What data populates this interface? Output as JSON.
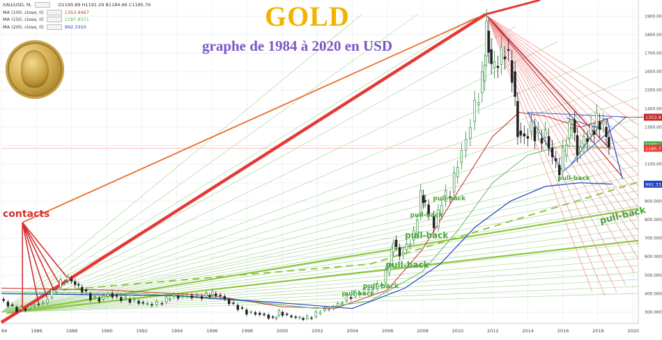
{
  "header": {
    "symbol": "XAU/USD, M,",
    "ohlc": "O1190.89  H1191.29  B1184.66  C1185.76",
    "ma": [
      {
        "label": "MA (100, close, 0)",
        "value": "1353.9467",
        "color": "#c0392b"
      },
      {
        "label": "MA (150, close, 0)",
        "value": "1187.8371",
        "color": "#4caf50"
      },
      {
        "label": "MA (200, close, 0)",
        "value": "992.3310",
        "color": "#1f3fbf"
      }
    ]
  },
  "title": "GOLD",
  "subtitle": "graphe de 1984 à 2020 en USD",
  "colors": {
    "title": "#f0b400",
    "subtitle": "#7b55c6",
    "bull": "#2e8b3e",
    "bear": "#222222",
    "fan_red": "#e53935",
    "fan_green": "#7cc242",
    "annotation_red": "#d32f2f",
    "annotation_green": "#4caf50"
  },
  "chart_data": {
    "type": "line",
    "instrument": "XAU/USD",
    "timeframe": "monthly",
    "x_ticks": [
      "84",
      "1986",
      "1988",
      "1990",
      "1992",
      "1994",
      "1996",
      "1998",
      "2000",
      "2002",
      "2004",
      "2006",
      "2008",
      "2010",
      "2012",
      "2014",
      "2016",
      "2018",
      "2020"
    ],
    "y_ticks": [
      "1900.000",
      "1800.000",
      "1700.000",
      "1600.000",
      "1500.000",
      "1400.000",
      "1300.000",
      "1200.000",
      "1100.000",
      "1000.000",
      "900.000",
      "800.000",
      "700.000",
      "600.000",
      "500.000",
      "400.000",
      "300.000"
    ],
    "ylim": [
      240,
      1980
    ],
    "xlim": [
      1984.0,
      2020.3
    ],
    "price": {
      "x": [
        1984.0,
        1984.5,
        1985.0,
        1985.5,
        1986.0,
        1986.5,
        1987.0,
        1987.5,
        1987.9,
        1988.3,
        1988.7,
        1989.2,
        1989.7,
        1990.2,
        1990.7,
        1991.2,
        1991.7,
        1992.2,
        1992.7,
        1993.3,
        1993.7,
        1994.2,
        1994.7,
        1995.3,
        1995.8,
        1996.1,
        1996.6,
        1997.1,
        1997.6,
        1998.1,
        1998.6,
        1999.1,
        1999.6,
        1999.9,
        2000.4,
        2000.9,
        2001.3,
        2001.8,
        2002.3,
        2002.8,
        2003.3,
        2003.8,
        2004.3,
        2004.8,
        2005.3,
        2005.8,
        2006.2,
        2006.4,
        2006.8,
        2007.2,
        2007.6,
        2008.0,
        2008.2,
        2008.8,
        2009.2,
        2009.7,
        2010.1,
        2010.6,
        2011.1,
        2011.5,
        2011.7,
        2012.0,
        2012.4,
        2012.8,
        2013.2,
        2013.5,
        2013.9,
        2014.3,
        2014.7,
        2015.1,
        2015.5,
        2015.9,
        2016.3,
        2016.6,
        2016.9,
        2017.3,
        2017.7,
        2018.0,
        2018.4,
        2018.7
      ],
      "y": [
        370,
        340,
        315,
        320,
        345,
        350,
        410,
        460,
        480,
        450,
        420,
        380,
        370,
        400,
        380,
        370,
        360,
        345,
        340,
        355,
        385,
        385,
        390,
        385,
        390,
        400,
        385,
        350,
        325,
        300,
        295,
        285,
        265,
        300,
        280,
        270,
        265,
        275,
        310,
        320,
        345,
        380,
        395,
        420,
        425,
        460,
        560,
        690,
        610,
        660,
        720,
        930,
        880,
        760,
        900,
        950,
        1110,
        1240,
        1420,
        1550,
        1820,
        1620,
        1640,
        1720,
        1600,
        1280,
        1250,
        1300,
        1240,
        1250,
        1130,
        1060,
        1240,
        1340,
        1170,
        1240,
        1280,
        1330,
        1300,
        1190
      ]
    },
    "moving_averages": [
      {
        "name": "MA (100, close, 0)",
        "value": 1353.9467
      },
      {
        "name": "MA (150, close, 0)",
        "value": 1187.8371
      },
      {
        "name": "MA (200, close, 0)",
        "value": 992.331
      }
    ],
    "price_labels": [
      "1353.9",
      "1187",
      "1185.7",
      "992.33"
    ],
    "annotations": [
      "contacts",
      "pull-back",
      "pull-back",
      "pull-back",
      "pull-back",
      "pull-back",
      "pull-back",
      "pull-back"
    ]
  }
}
